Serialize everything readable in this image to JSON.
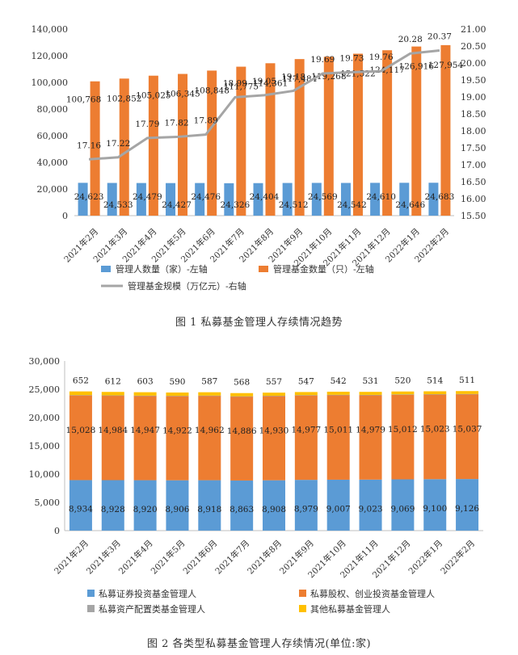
{
  "chart_data": [
    {
      "type": "bar",
      "title": "图 1  私募基金管理人存续情况趋势",
      "categories": [
        "2021年2月",
        "2021年3月",
        "2021年4月",
        "2021年5月",
        "2021年6月",
        "2021年7月",
        "2021年8月",
        "2021年9月",
        "2021年10月",
        "2021年11月",
        "2021年12月",
        "2022年1月",
        "2022年2月"
      ],
      "series": [
        {
          "name": "管理人数量（家）-左轴",
          "type": "bar",
          "axis": "left",
          "color": "#5b9bd5",
          "values": [
            24623,
            24533,
            24479,
            24427,
            24476,
            24326,
            24404,
            24512,
            24569,
            24542,
            24610,
            24646,
            24683
          ],
          "labels": [
            "24,623",
            "24,533",
            "24,479",
            "24,427",
            "24,476",
            "24,326",
            "24,404",
            "24,512",
            "24,569",
            "24,542",
            "24,610",
            "24,646",
            "24,683"
          ]
        },
        {
          "name": "管理基金数量（只）-左轴",
          "type": "bar",
          "axis": "left",
          "color": "#ed7d31",
          "values": [
            100768,
            102852,
            105025,
            106345,
            108848,
            111775,
            114361,
            117484,
            119268,
            121522,
            124117,
            126916,
            127954
          ],
          "labels": [
            "100,768",
            "102,852",
            "105,025",
            "106,345",
            "108,848",
            "111,775",
            "114,361",
            "117,484",
            "119,268",
            "121,522",
            "124,117",
            "126,916",
            "127,954"
          ]
        },
        {
          "name": "管理基金规模（万亿元）-右轴",
          "type": "line",
          "axis": "right",
          "color": "#a5a5a5",
          "values": [
            17.16,
            17.22,
            17.79,
            17.82,
            17.89,
            18.99,
            19.05,
            19.18,
            19.69,
            19.73,
            19.76,
            20.28,
            20.37
          ],
          "labels": [
            "17.16",
            "17.22",
            "17.79",
            "17.82",
            "17.89",
            "18.99",
            "19.05",
            "19.18",
            "19.69",
            "19.73",
            "19.76",
            "20.28",
            "20.37"
          ]
        }
      ],
      "ylim_left": [
        0,
        140000
      ],
      "yticks_left": [
        "0",
        "20,000",
        "40,000",
        "60,000",
        "80,000",
        "100,000",
        "120,000",
        "140,000"
      ],
      "ylim_right": [
        15.5,
        21.0
      ],
      "yticks_right": [
        "15.50",
        "16.00",
        "16.50",
        "17.00",
        "17.50",
        "18.00",
        "18.50",
        "19.00",
        "19.50",
        "20.00",
        "20.50",
        "21.00"
      ],
      "legend": "bottom",
      "grid": false
    },
    {
      "type": "bar",
      "stacked": true,
      "title": "图 2  各类型私募基金管理人存续情况(单位:家)",
      "categories": [
        "2021年2月",
        "2021年3月",
        "2021年4月",
        "2021年5月",
        "2021年6月",
        "2021年7月",
        "2021年8月",
        "2021年9月",
        "2021年10月",
        "2021年11月",
        "2021年12月",
        "2022年1月",
        "2022年2月"
      ],
      "series": [
        {
          "name": "私募证券投资基金管理人",
          "color": "#5b9bd5",
          "values": [
            8934,
            8928,
            8920,
            8906,
            8918,
            8863,
            8908,
            8979,
            9007,
            9023,
            9069,
            9100,
            9126
          ],
          "labels": [
            "8,934",
            "8,928",
            "8,920",
            "8,906",
            "8,918",
            "8,863",
            "8,908",
            "8,979",
            "9,007",
            "9,023",
            "9,069",
            "9,100",
            "9,126"
          ]
        },
        {
          "name": "私募股权、创业投资基金管理人",
          "color": "#ed7d31",
          "values": [
            15028,
            14984,
            14947,
            14922,
            14962,
            14886,
            14930,
            14977,
            15011,
            14979,
            15012,
            15023,
            15037
          ],
          "labels": [
            "15,028",
            "14,984",
            "14,947",
            "14,922",
            "14,962",
            "14,886",
            "14,930",
            "14,977",
            "15,011",
            "14,979",
            "15,012",
            "15,023",
            "15,037"
          ]
        },
        {
          "name": "私募资产配置类基金管理人",
          "color": "#a5a5a5",
          "values": [
            9,
            9,
            9,
            9,
            9,
            9,
            9,
            9,
            9,
            9,
            9,
            9,
            9
          ],
          "labels": []
        },
        {
          "name": "其他私募基金管理人",
          "color": "#ffc000",
          "values": [
            652,
            612,
            603,
            590,
            587,
            568,
            557,
            547,
            542,
            531,
            520,
            514,
            511
          ],
          "labels": [
            "652",
            "612",
            "603",
            "590",
            "587",
            "568",
            "557",
            "547",
            "542",
            "531",
            "520",
            "514",
            "511"
          ]
        }
      ],
      "ylim": [
        0,
        30000
      ],
      "yticks": [
        "0",
        "5,000",
        "10,000",
        "15,000",
        "20,000",
        "25,000",
        "30,000"
      ],
      "legend": "bottom",
      "grid": false
    }
  ]
}
